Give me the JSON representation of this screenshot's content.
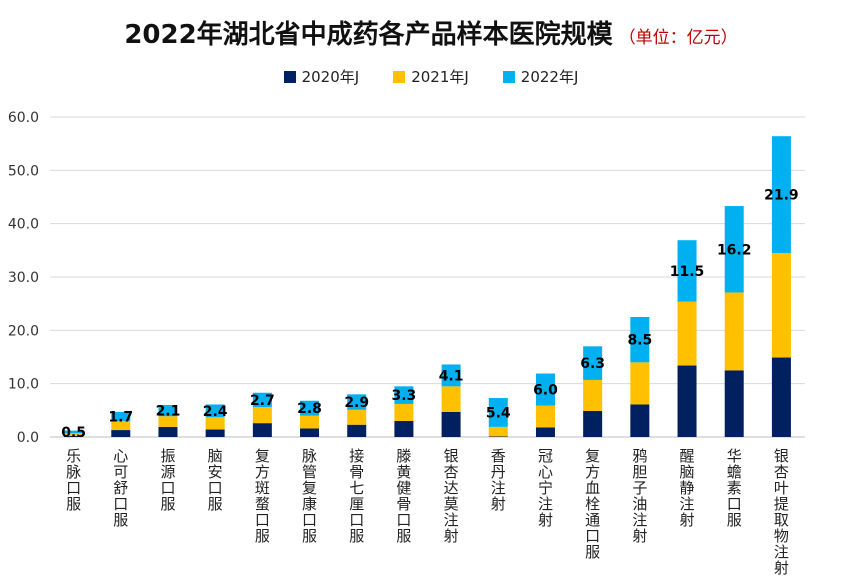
{
  "chart_data": {
    "type": "bar",
    "stacked": true,
    "title": "2022年湖北省中成药各产品样本医院规模",
    "subtitle": "（单位：亿元）",
    "xlabel": "",
    "ylabel": "",
    "ylim": [
      0,
      60
    ],
    "yticks": [
      "0.0",
      "10.0",
      "20.0",
      "30.0",
      "40.0",
      "50.0",
      "60.0"
    ],
    "grid": true,
    "legend_position": "top",
    "categories": [
      "乐脉口服",
      "心可舒口服",
      "振源口服",
      "脑安口服",
      "复方斑蝥口服",
      "脉管复康口服",
      "接骨七厘口服",
      "滕黄健骨口服",
      "银杏达莫注射",
      "香丹注射",
      "冠心宁注射",
      "复方血栓通口服",
      "鸦胆子油注射",
      "醒脑静注射",
      "华蟾素口服",
      "银杏叶提取物注射"
    ],
    "series": [
      {
        "name": "2020年J",
        "color": "#002060",
        "values": [
          0.2,
          1.3,
          1.9,
          1.4,
          2.6,
          1.6,
          2.3,
          3.0,
          4.7,
          0.1,
          1.8,
          4.9,
          6.1,
          13.4,
          12.5,
          14.9
        ]
      },
      {
        "name": "2021年J",
        "color": "#FFC000",
        "values": [
          0.5,
          1.7,
          2.0,
          2.3,
          3.0,
          2.4,
          2.8,
          3.2,
          4.8,
          1.8,
          4.1,
          5.8,
          7.9,
          12.0,
          14.6,
          19.6
        ]
      },
      {
        "name": "2022年J",
        "color": "#00B0F0",
        "values": [
          0.5,
          1.7,
          2.1,
          2.4,
          2.7,
          2.8,
          2.9,
          3.3,
          4.1,
          5.4,
          6.0,
          6.3,
          8.5,
          11.5,
          16.2,
          21.9
        ]
      }
    ],
    "data_labels": [
      "0.5",
      "1.7",
      "2.1",
      "2.4",
      "2.7",
      "2.8",
      "2.9",
      "3.3",
      "4.1",
      "5.4",
      "6.0",
      "6.3",
      "8.5",
      "11.5",
      "16.2",
      "21.9"
    ]
  }
}
